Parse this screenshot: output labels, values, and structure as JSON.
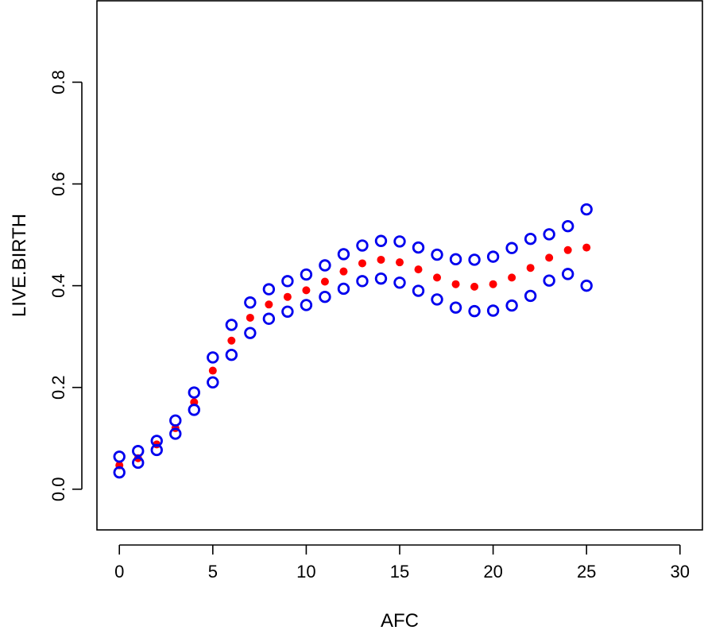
{
  "chart_data": {
    "type": "scatter",
    "title": "",
    "xlabel": "AFC",
    "ylabel": "LIVE.BIRTH",
    "xlim": [
      -1.2,
      31.2
    ],
    "ylim": [
      -0.08,
      0.96
    ],
    "xticks": [
      0,
      5,
      10,
      15,
      20,
      25,
      30
    ],
    "yticks": [
      0.0,
      0.2,
      0.4,
      0.6,
      0.8
    ],
    "xtick_labels": [
      "0",
      "5",
      "10",
      "15",
      "20",
      "25",
      "30"
    ],
    "ytick_labels": [
      "0.0",
      "0.2",
      "0.4",
      "0.6",
      "0.8"
    ],
    "grid": false,
    "x": [
      0,
      1,
      2,
      3,
      4,
      5,
      6,
      7,
      8,
      9,
      10,
      11,
      12,
      13,
      14,
      15,
      16,
      17,
      18,
      19,
      20,
      21,
      22,
      23,
      24,
      25
    ],
    "series": [
      {
        "marker": "filled-circle",
        "color": "#ff0000",
        "values": [
          0.047,
          0.061,
          0.088,
          0.12,
          0.171,
          0.233,
          0.292,
          0.337,
          0.363,
          0.378,
          0.391,
          0.408,
          0.428,
          0.444,
          0.451,
          0.446,
          0.432,
          0.416,
          0.403,
          0.398,
          0.403,
          0.416,
          0.435,
          0.455,
          0.47,
          0.475
        ]
      },
      {
        "marker": "open-circle",
        "color": "#0000ee",
        "values": [
          0.064,
          0.075,
          0.095,
          0.135,
          0.19,
          0.259,
          0.323,
          0.367,
          0.393,
          0.409,
          0.422,
          0.44,
          0.462,
          0.479,
          0.488,
          0.487,
          0.475,
          0.461,
          0.452,
          0.451,
          0.457,
          0.474,
          0.492,
          0.501,
          0.517,
          0.55
        ]
      },
      {
        "marker": "open-circle",
        "color": "#0000ee",
        "values": [
          0.033,
          0.052,
          0.077,
          0.109,
          0.156,
          0.21,
          0.264,
          0.307,
          0.335,
          0.349,
          0.362,
          0.378,
          0.394,
          0.409,
          0.414,
          0.406,
          0.39,
          0.373,
          0.357,
          0.35,
          0.351,
          0.361,
          0.38,
          0.41,
          0.423,
          0.4
        ]
      }
    ]
  }
}
